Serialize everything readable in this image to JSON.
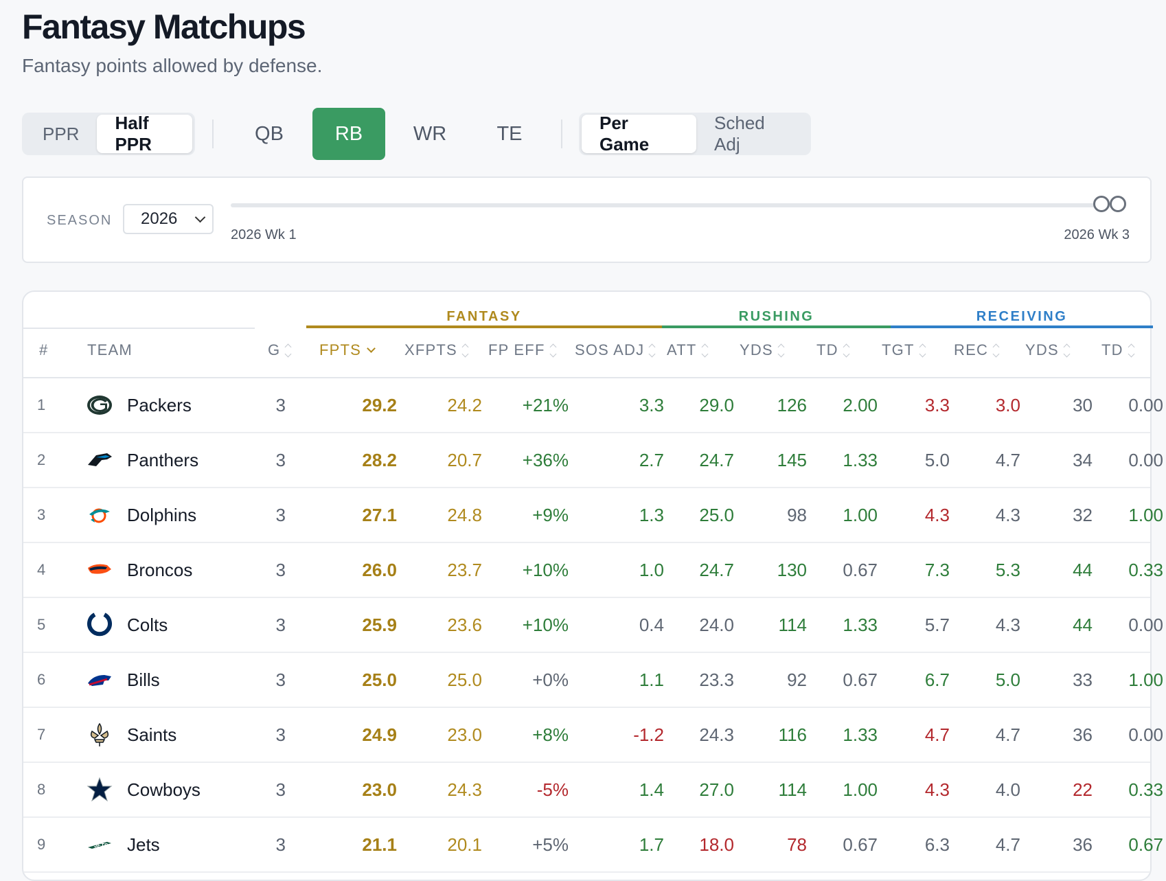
{
  "page": {
    "title": "Fantasy Matchups",
    "subtitle": "Fantasy points allowed by defense."
  },
  "scoring": {
    "options": [
      "PPR",
      "Half PPR"
    ],
    "selected": "Half PPR"
  },
  "positions": {
    "options": [
      "QB",
      "RB",
      "WR",
      "TE"
    ],
    "selected": "RB"
  },
  "mode": {
    "options": [
      "Per Game",
      "Sched Adj"
    ],
    "selected": "Per Game"
  },
  "filters": {
    "season_label": "SEASON",
    "season_value": "2026",
    "range_start_label": "2026 Wk 1",
    "range_end_label": "2026 Wk 3"
  },
  "table": {
    "groups": {
      "fantasy": "FANTASY",
      "rushing": "RUSHING",
      "receiving": "RECEIVING"
    },
    "group_colors": {
      "fantasy": "#b08a1e",
      "rushing": "#3a9b62",
      "receiving": "#2f7fc8"
    },
    "columns": {
      "rank": "#",
      "team": "TEAM",
      "g": "G",
      "fpts": "FPTS",
      "xfpts": "XFPTS",
      "fp_eff": "FP EFF",
      "sos_adj": "SOS ADJ",
      "att": "ATT",
      "rush_yds": "YDS",
      "rush_td": "TD",
      "tgt": "TGT",
      "rec": "REC",
      "rec_yds": "YDS",
      "rec_td": "TD"
    },
    "sorted_by": "FPTS",
    "sort_direction": "descending",
    "rows": [
      {
        "rank": "1",
        "team": "Packers",
        "icon": "packers-logo-icon",
        "g": "3",
        "fpts": "29.2",
        "xfpts": "24.2",
        "fp_eff": "+21%",
        "sos_adj": "3.3",
        "att": "29.0",
        "rush_yds": "126",
        "rush_td": "2.00",
        "tgt": "3.3",
        "rec": "3.0",
        "rec_yds": "30",
        "rec_td": "0.00"
      },
      {
        "rank": "2",
        "team": "Panthers",
        "icon": "panthers-logo-icon",
        "g": "3",
        "fpts": "28.2",
        "xfpts": "20.7",
        "fp_eff": "+36%",
        "sos_adj": "2.7",
        "att": "24.7",
        "rush_yds": "145",
        "rush_td": "1.33",
        "tgt": "5.0",
        "rec": "4.7",
        "rec_yds": "34",
        "rec_td": "0.00"
      },
      {
        "rank": "3",
        "team": "Dolphins",
        "icon": "dolphins-logo-icon",
        "g": "3",
        "fpts": "27.1",
        "xfpts": "24.8",
        "fp_eff": "+9%",
        "sos_adj": "1.3",
        "att": "25.0",
        "rush_yds": "98",
        "rush_td": "1.00",
        "tgt": "4.3",
        "rec": "4.3",
        "rec_yds": "32",
        "rec_td": "1.00"
      },
      {
        "rank": "4",
        "team": "Broncos",
        "icon": "broncos-logo-icon",
        "g": "3",
        "fpts": "26.0",
        "xfpts": "23.7",
        "fp_eff": "+10%",
        "sos_adj": "1.0",
        "att": "24.7",
        "rush_yds": "130",
        "rush_td": "0.67",
        "tgt": "7.3",
        "rec": "5.3",
        "rec_yds": "44",
        "rec_td": "0.33"
      },
      {
        "rank": "5",
        "team": "Colts",
        "icon": "colts-logo-icon",
        "g": "3",
        "fpts": "25.9",
        "xfpts": "23.6",
        "fp_eff": "+10%",
        "sos_adj": "0.4",
        "att": "24.0",
        "rush_yds": "114",
        "rush_td": "1.33",
        "tgt": "5.7",
        "rec": "4.3",
        "rec_yds": "44",
        "rec_td": "0.00"
      },
      {
        "rank": "6",
        "team": "Bills",
        "icon": "bills-logo-icon",
        "g": "3",
        "fpts": "25.0",
        "xfpts": "25.0",
        "fp_eff": "+0%",
        "sos_adj": "1.1",
        "att": "23.3",
        "rush_yds": "92",
        "rush_td": "0.67",
        "tgt": "6.7",
        "rec": "5.0",
        "rec_yds": "33",
        "rec_td": "1.00"
      },
      {
        "rank": "7",
        "team": "Saints",
        "icon": "saints-logo-icon",
        "g": "3",
        "fpts": "24.9",
        "xfpts": "23.0",
        "fp_eff": "+8%",
        "sos_adj": "-1.2",
        "att": "24.3",
        "rush_yds": "116",
        "rush_td": "1.33",
        "tgt": "4.7",
        "rec": "4.7",
        "rec_yds": "36",
        "rec_td": "0.00"
      },
      {
        "rank": "8",
        "team": "Cowboys",
        "icon": "cowboys-logo-icon",
        "g": "3",
        "fpts": "23.0",
        "xfpts": "24.3",
        "fp_eff": "-5%",
        "sos_adj": "1.4",
        "att": "27.0",
        "rush_yds": "114",
        "rush_td": "1.00",
        "tgt": "4.3",
        "rec": "4.0",
        "rec_yds": "22",
        "rec_td": "0.33"
      },
      {
        "rank": "9",
        "team": "Jets",
        "icon": "jets-logo-icon",
        "g": "3",
        "fpts": "21.1",
        "xfpts": "20.1",
        "fp_eff": "+5%",
        "sos_adj": "1.7",
        "att": "18.0",
        "rush_yds": "78",
        "rush_td": "0.67",
        "tgt": "6.3",
        "rec": "4.7",
        "rec_yds": "36",
        "rec_td": "0.67"
      }
    ],
    "value_colors": {
      "green": "#2e7d3a",
      "red": "#b3282d",
      "neutral": "#5e6672"
    }
  }
}
